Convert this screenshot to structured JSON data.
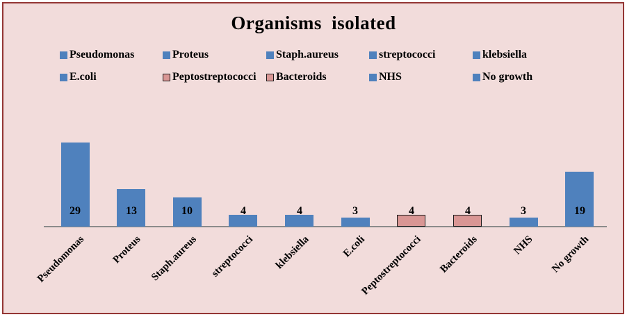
{
  "title": "Organisms isolated",
  "panel": {
    "background_color": "#f2dcdb",
    "border_color": "#943634"
  },
  "colors": {
    "blue_series": "#4f81bd",
    "pink_series": "#d99694",
    "pink_series_border": "#1a1a1a",
    "axis_line": "#8b8b8b",
    "text": "#000000"
  },
  "legend": {
    "position": "top",
    "rows": 2,
    "columns": 5,
    "items": [
      {
        "label": "Pseudomonas",
        "color": "#4f81bd",
        "border": "none"
      },
      {
        "label": "Proteus",
        "color": "#4f81bd",
        "border": "none"
      },
      {
        "label": "Staph.aureus",
        "color": "#4f81bd",
        "border": "none"
      },
      {
        "label": "streptococci",
        "color": "#4f81bd",
        "border": "none"
      },
      {
        "label": "klebsiella",
        "color": "#4f81bd",
        "border": "none"
      },
      {
        "label": "E.coli",
        "color": "#4f81bd",
        "border": "none"
      },
      {
        "label": "Peptostreptococci",
        "color": "#d99694",
        "border": "#1a1a1a"
      },
      {
        "label": "Bacteroids",
        "color": "#d99694",
        "border": "#1a1a1a"
      },
      {
        "label": "NHS",
        "color": "#4f81bd",
        "border": "none"
      },
      {
        "label": "No growth",
        "color": "#4f81bd",
        "border": "none"
      }
    ]
  },
  "chart_data": {
    "type": "bar",
    "title": "Organisms isolated",
    "categories": [
      "Pseudomonas",
      "Proteus",
      "Staph.aureus",
      "streptococci",
      "klebsiella",
      "E.coli",
      "Peptostreptococci",
      "Bacteroids",
      "NHS",
      "No growth"
    ],
    "values": [
      29,
      13,
      10,
      4,
      4,
      3,
      4,
      4,
      3,
      19
    ],
    "bar_colors": [
      "#4f81bd",
      "#4f81bd",
      "#4f81bd",
      "#4f81bd",
      "#4f81bd",
      "#4f81bd",
      "#d99694",
      "#d99694",
      "#4f81bd",
      "#4f81bd"
    ],
    "bar_borders": [
      "none",
      "none",
      "none",
      "none",
      "none",
      "none",
      "#1a1a1a",
      "#1a1a1a",
      "none",
      "none"
    ],
    "data_labels_shown": true,
    "xlabel": "",
    "ylabel": "",
    "ylim": [
      0,
      30
    ],
    "y_axis_shown": false,
    "grid": false,
    "x_label_rotation": -45,
    "legend_position": "top"
  }
}
